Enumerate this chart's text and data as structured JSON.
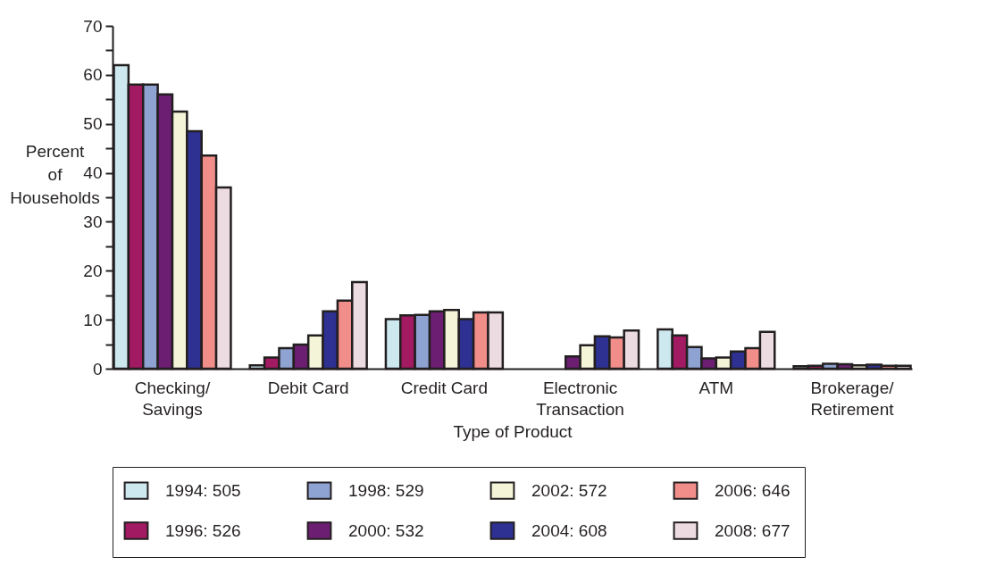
{
  "chart_data": {
    "type": "bar",
    "xlabel": "Type of Product",
    "ylabel": "Percent of Households",
    "categories": [
      "Checking/\nSavings",
      "Debit Card",
      "Credit Card",
      "Electronic\nTransaction",
      "ATM",
      "Brokerage/\nRetirement"
    ],
    "series": [
      {
        "name": "1994: 505",
        "color": "#cde9ef",
        "values": [
          62,
          0.7,
          10.1,
          null,
          8.0,
          0.5
        ]
      },
      {
        "name": "1996: 526",
        "color": "#a21a62",
        "values": [
          58,
          2.3,
          10.9,
          null,
          6.8,
          0.6
        ]
      },
      {
        "name": "1998: 529",
        "color": "#8fa3d2",
        "values": [
          58,
          4.2,
          11.0,
          null,
          4.4,
          1.0
        ]
      },
      {
        "name": "2000: 532",
        "color": "#6c1f72",
        "values": [
          56,
          4.9,
          11.7,
          2.5,
          2.1,
          0.9
        ]
      },
      {
        "name": "2002: 572",
        "color": "#f4f4d8",
        "values": [
          52.5,
          6.8,
          12.0,
          4.8,
          2.3,
          0.7
        ]
      },
      {
        "name": "2004: 608",
        "color": "#2e3192",
        "values": [
          48.5,
          11.7,
          10.1,
          6.6,
          3.5,
          0.8
        ]
      },
      {
        "name": "2006: 646",
        "color": "#f28e8a",
        "values": [
          43.5,
          13.9,
          11.5,
          6.4,
          4.2,
          0.6
        ]
      },
      {
        "name": "2008: 677",
        "color": "#ecdce2",
        "values": [
          37,
          17.7,
          11.5,
          7.8,
          7.5,
          0.6
        ]
      }
    ],
    "ylim": [
      0,
      70
    ],
    "yticks": [
      0,
      {
        "value": 5,
        "label": null
      },
      10,
      {
        "value": 15,
        "label": null
      },
      20,
      {
        "value": 25,
        "label": null
      },
      30,
      {
        "value": 35,
        "label": null
      },
      40,
      {
        "value": 45,
        "label": null
      },
      50,
      {
        "value": 55,
        "label": null
      },
      60,
      {
        "value": 65,
        "label": null
      },
      70
    ],
    "grid": false,
    "legend": "bottom"
  }
}
